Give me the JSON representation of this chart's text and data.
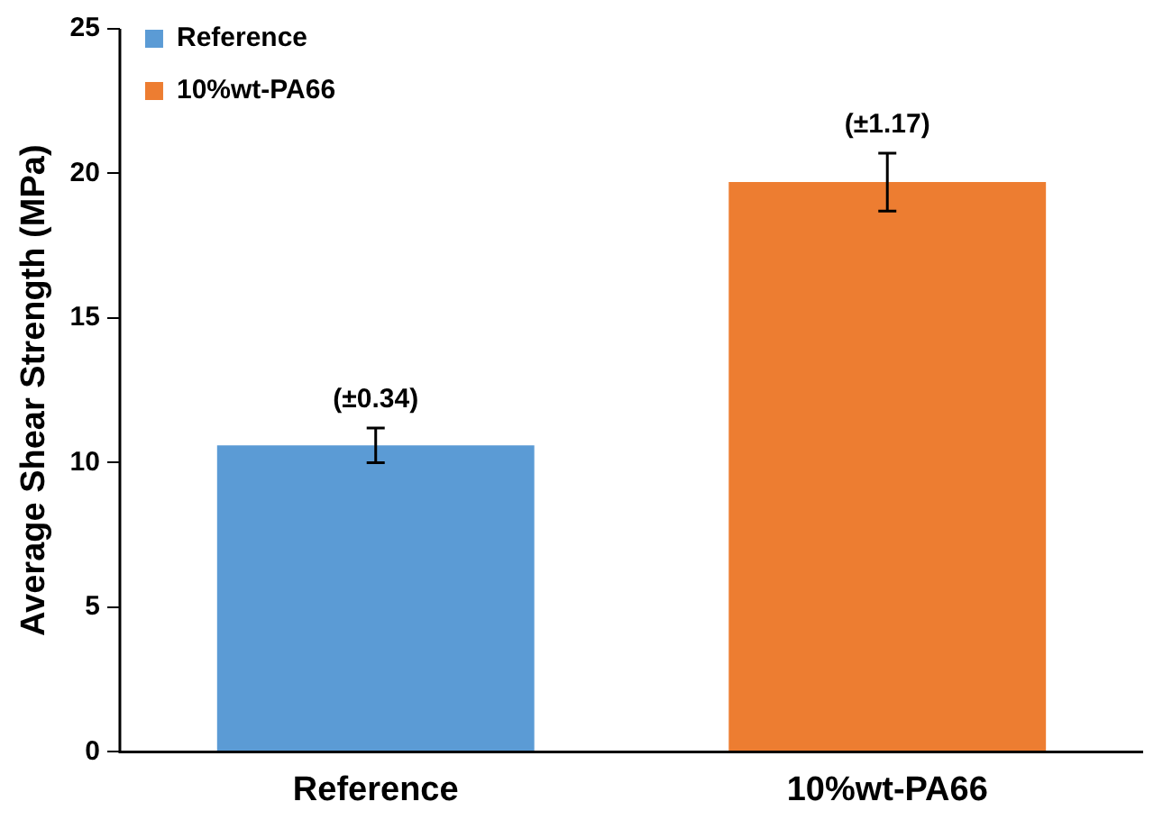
{
  "chart_data": {
    "type": "bar",
    "ylabel": "Average Shear Strength (MPa)",
    "categories": [
      "Reference",
      "10%wt-PA66"
    ],
    "series": [
      {
        "name": "Reference",
        "color": "#5b9bd5",
        "values": [
          10.6,
          null
        ],
        "errors": [
          0.6,
          null
        ]
      },
      {
        "name": "10%wt-PA66",
        "color": "#ed7d31",
        "values": [
          null,
          19.7
        ],
        "errors": [
          null,
          1.0
        ]
      }
    ],
    "ylim": [
      0,
      25
    ],
    "yticks": [
      0,
      5,
      10,
      15,
      20,
      25
    ],
    "grid": false,
    "legend": "top left",
    "annotations": [
      {
        "text": "(±0.34)",
        "x": "Reference",
        "y": 11.2
      },
      {
        "text": "(±1.17)",
        "x": "10%wt-PA66",
        "y": 20.7
      }
    ]
  }
}
